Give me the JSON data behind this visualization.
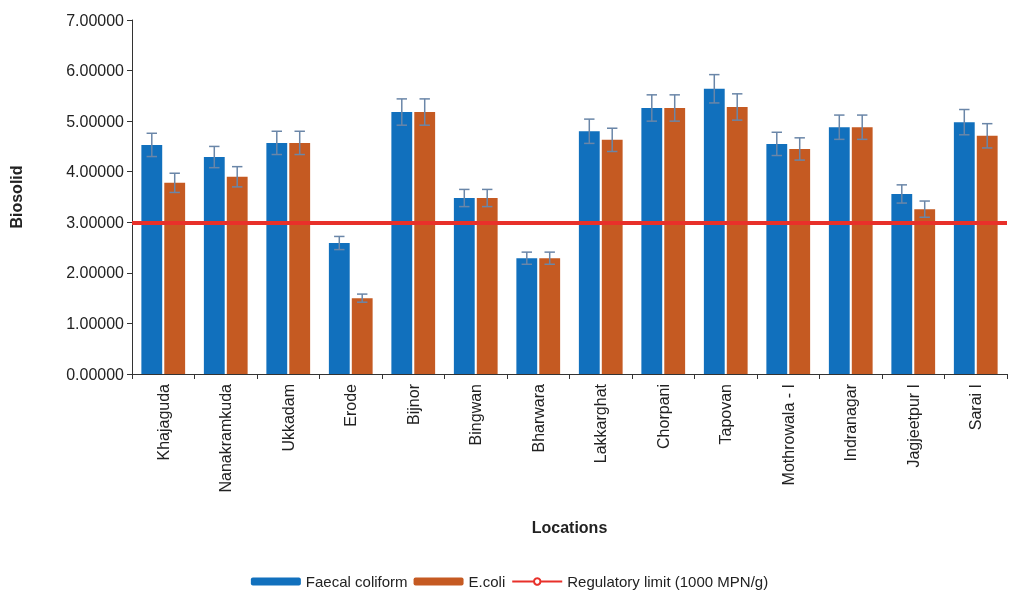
{
  "chart_data": {
    "type": "bar",
    "xlabel": "Locations",
    "ylabel": "Biosolid",
    "categories": [
      "Khajaguda",
      "Nanakramkuda",
      "Ukkadam",
      "Erode",
      "Bijnor",
      "Bingwan",
      "Bharwara",
      "Lakkarghat",
      "Chorpani",
      "Tapovan",
      "Mothrowala - I",
      "Indranagar",
      "Jagjeetpur I",
      "Sarai I"
    ],
    "series": [
      {
        "name": "Faecal coliform",
        "color": "#1170bd",
        "values": [
          4.53,
          4.29,
          4.57,
          2.59,
          5.18,
          3.48,
          2.29,
          4.8,
          5.26,
          5.64,
          4.55,
          4.88,
          3.56,
          4.98
        ],
        "errors": [
          0.23,
          0.21,
          0.23,
          0.13,
          0.26,
          0.17,
          0.12,
          0.24,
          0.26,
          0.28,
          0.23,
          0.24,
          0.18,
          0.25
        ]
      },
      {
        "name": "E.coli",
        "color": "#c55a22",
        "values": [
          3.78,
          3.9,
          4.57,
          1.5,
          5.18,
          3.48,
          2.29,
          4.63,
          5.26,
          5.28,
          4.45,
          4.88,
          3.26,
          4.71
        ],
        "errors": [
          0.19,
          0.2,
          0.23,
          0.08,
          0.26,
          0.17,
          0.12,
          0.23,
          0.26,
          0.26,
          0.22,
          0.24,
          0.16,
          0.24
        ]
      }
    ],
    "ylim": [
      0,
      7
    ],
    "yticks": [
      {
        "value": 0,
        "label": "0.00000"
      },
      {
        "value": 1,
        "label": "1.00000"
      },
      {
        "value": 2,
        "label": "2.00000"
      },
      {
        "value": 3,
        "label": "3.00000"
      },
      {
        "value": 4,
        "label": "4.00000"
      },
      {
        "value": 5,
        "label": "5.00000"
      },
      {
        "value": 6,
        "label": "6.00000"
      },
      {
        "value": 7,
        "label": "7.00000"
      }
    ],
    "ref_lines": [
      {
        "axis": "y",
        "value": 3,
        "label": "Regulatory limit (1000 MPN/g)",
        "color": "#e8302a"
      }
    ],
    "grid": false,
    "legend": "bottom"
  }
}
